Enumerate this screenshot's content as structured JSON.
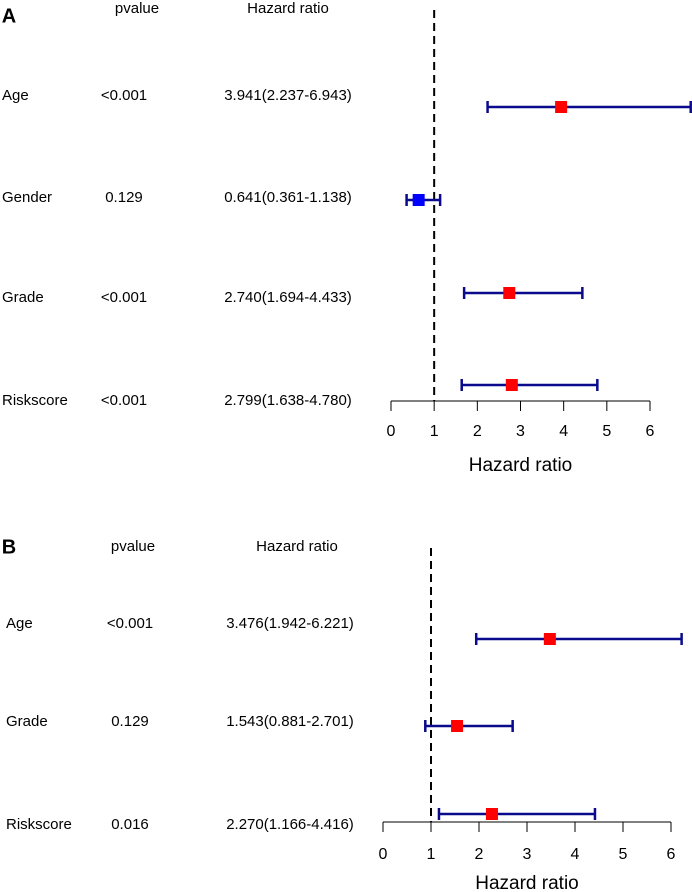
{
  "colors": {
    "ci_line": "#0a0a8c",
    "risk_marker": "#ff0000",
    "protective_marker": "#0000ff",
    "axis": "#000000"
  },
  "chart_data": [
    {
      "type": "forest",
      "panel_label": "A",
      "pvalue_header": "pvalue",
      "hr_header": "Hazard ratio",
      "xlabel": "Hazard ratio",
      "xlim": [
        0,
        6
      ],
      "xticks": [
        "0",
        "1",
        "2",
        "3",
        "4",
        "5",
        "6"
      ],
      "reference_line": 1,
      "rows": [
        {
          "variable": "Age",
          "pvalue": "<0.001",
          "hr_text": "3.941(2.237-6.943)",
          "hr": 3.941,
          "lower": 2.237,
          "upper": 6.943
        },
        {
          "variable": "Gender",
          "pvalue": "0.129",
          "hr_text": "0.641(0.361-1.138)",
          "hr": 0.641,
          "lower": 0.361,
          "upper": 1.138
        },
        {
          "variable": "Grade",
          "pvalue": "<0.001",
          "hr_text": "2.740(1.694-4.433)",
          "hr": 2.74,
          "lower": 1.694,
          "upper": 4.433
        },
        {
          "variable": "Riskscore",
          "pvalue": "<0.001",
          "hr_text": "2.799(1.638-4.780)",
          "hr": 2.799,
          "lower": 1.638,
          "upper": 4.78
        }
      ]
    },
    {
      "type": "forest",
      "panel_label": "B",
      "pvalue_header": "pvalue",
      "hr_header": "Hazard ratio",
      "xlabel": "Hazard ratio",
      "xlim": [
        0,
        6
      ],
      "xticks": [
        "0",
        "1",
        "2",
        "3",
        "4",
        "5",
        "6"
      ],
      "reference_line": 1,
      "rows": [
        {
          "variable": "Age",
          "pvalue": "<0.001",
          "hr_text": "3.476(1.942-6.221)",
          "hr": 3.476,
          "lower": 1.942,
          "upper": 6.221
        },
        {
          "variable": "Grade",
          "pvalue": "0.129",
          "hr_text": "1.543(0.881-2.701)",
          "hr": 1.543,
          "lower": 0.881,
          "upper": 2.701
        },
        {
          "variable": "Riskscore",
          "pvalue": "0.016",
          "hr_text": "2.270(1.166-4.416)",
          "hr": 2.27,
          "lower": 1.166,
          "upper": 4.416
        }
      ]
    }
  ]
}
